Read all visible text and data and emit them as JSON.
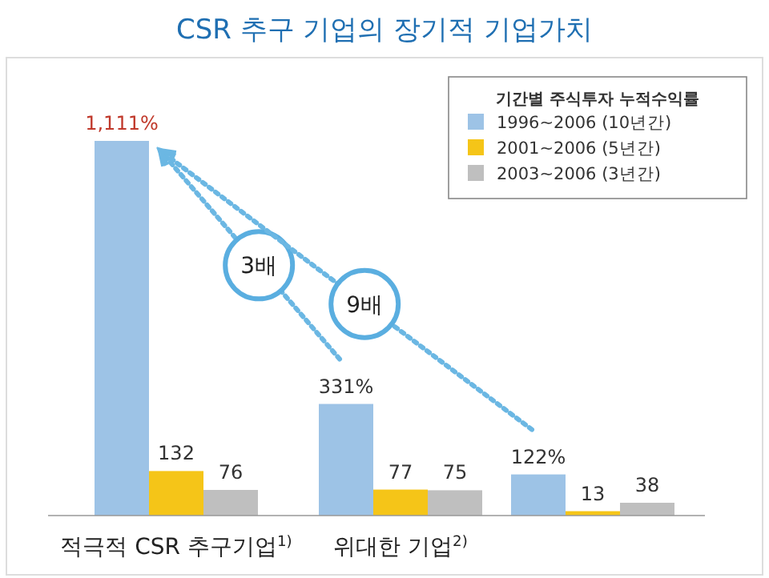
{
  "chart_data": {
    "type": "bar",
    "title": "CSR 추구 기업의 장기적 기업가치",
    "categories": [
      "적극적 CSR 추구기업$^{1)}$",
      "위대한 기업$^{2)}$",
      null
    ],
    "legend_title": "기간별 주식투자 누적수익률",
    "legend": "top right",
    "series": [
      {
        "name": "1996~2006 (10년간)",
        "color": "#9dc3e6",
        "values": [
          1111,
          331,
          122
        ],
        "value_labels": [
          "1,111%",
          "331%",
          "122%"
        ]
      },
      {
        "name": "2001~2006 (5년간)",
        "color": "#f5c518",
        "values": [
          132,
          77,
          13
        ],
        "value_labels": [
          "132",
          "77",
          "13"
        ]
      },
      {
        "name": "2003~2006 (3년간)",
        "color": "#bfbfbf",
        "values": [
          76,
          75,
          38
        ],
        "value_labels": [
          "76",
          "75",
          "38"
        ]
      }
    ],
    "annotations": [
      "3배",
      "9배"
    ]
  }
}
